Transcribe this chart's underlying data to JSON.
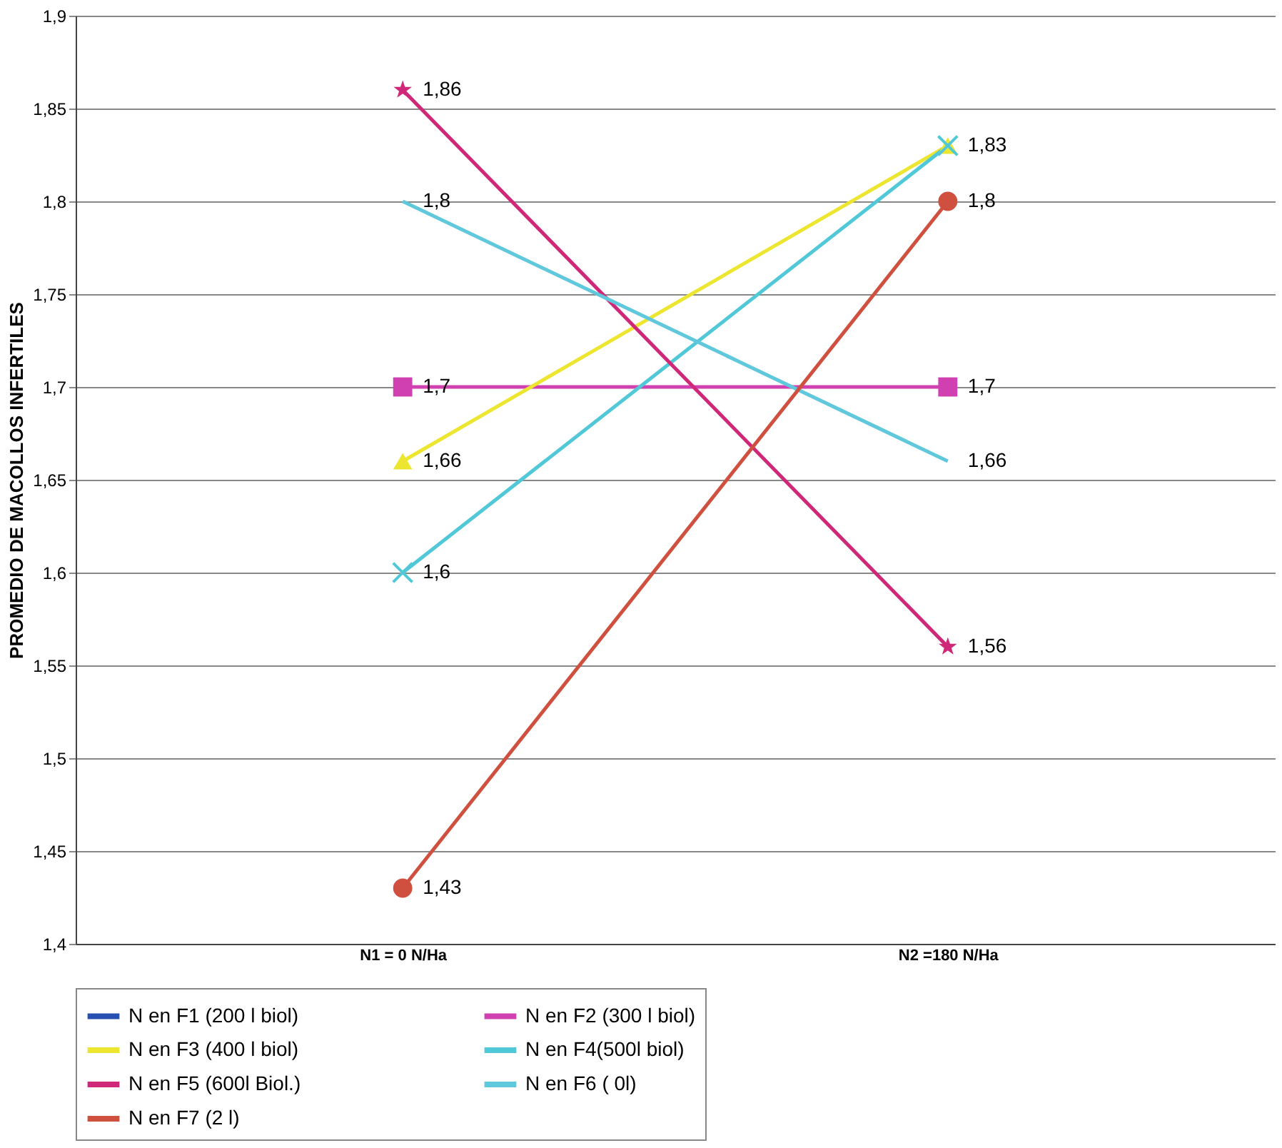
{
  "chart_data": {
    "type": "line",
    "ylabel": "PROMEDIO DE MACOLLOS INFERTILES",
    "categories": [
      "N1 = 0 N/Ha",
      "N2 =180 N/Ha"
    ],
    "series": [
      {
        "name": "N en F1 (200 l biol)",
        "color": "#2850b0",
        "values": [
          null,
          null
        ],
        "marker": "none"
      },
      {
        "name": "N en F2 (300 l biol)",
        "color": "#d040b0",
        "values": [
          1.7,
          1.7
        ],
        "marker": "square",
        "value_labels": [
          "1,7",
          "1,7"
        ]
      },
      {
        "name": "N en F3 (400 l biol)",
        "color": "#ece630",
        "values": [
          1.66,
          1.83
        ],
        "marker": "triangle",
        "value_labels": [
          "1,66",
          "1,83"
        ]
      },
      {
        "name": "N en F4(500l biol)",
        "color": "#50c8d8",
        "values": [
          1.6,
          1.83
        ],
        "marker": "cross",
        "value_labels": [
          "1,6",
          null
        ]
      },
      {
        "name": "N en F5 (600l Biol.)",
        "color": "#d02878",
        "values": [
          1.86,
          1.56
        ],
        "marker": "star",
        "value_labels": [
          "1,86",
          "1,56"
        ]
      },
      {
        "name": "N en F6 ( 0l)",
        "color": "#60c8dc",
        "values": [
          1.8,
          1.66
        ],
        "marker": "none",
        "value_labels": [
          "1,8",
          "1,66"
        ]
      },
      {
        "name": "N en F7 (2 l)",
        "color": "#d05040",
        "values": [
          1.43,
          1.8
        ],
        "marker": "circle",
        "value_labels": [
          "1,43",
          "1,8"
        ]
      }
    ],
    "ylim": [
      1.4,
      1.9
    ],
    "yticks": [
      {
        "value": 1.4,
        "label": "1,4"
      },
      {
        "value": 1.45,
        "label": "1,45"
      },
      {
        "value": 1.5,
        "label": "1,5"
      },
      {
        "value": 1.55,
        "label": "1,55"
      },
      {
        "value": 1.6,
        "label": "1,6"
      },
      {
        "value": 1.65,
        "label": "1,65"
      },
      {
        "value": 1.7,
        "label": "1,7"
      },
      {
        "value": 1.75,
        "label": "1,75"
      },
      {
        "value": 1.8,
        "label": "1,8"
      },
      {
        "value": 1.85,
        "label": "1,85"
      },
      {
        "value": 1.9,
        "label": "1,9"
      }
    ],
    "grid": "y",
    "legend": "bottom"
  }
}
